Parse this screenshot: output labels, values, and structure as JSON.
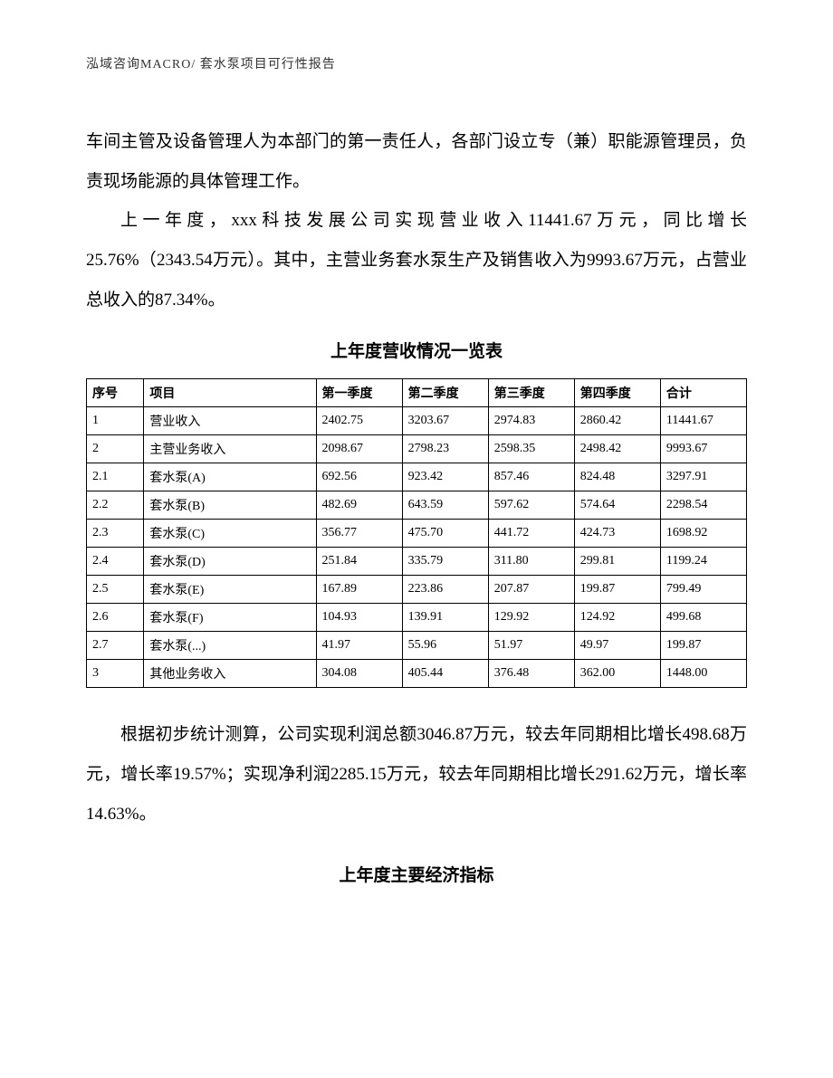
{
  "header": "泓域咨询MACRO/    套水泵项目可行性报告",
  "para1": "车间主管及设备管理人为本部门的第一责任人，各部门设立专（兼）职能源管理员，负责现场能源的具体管理工作。",
  "para2": "上一年度，xxx科技发展公司实现营业收入11441.67万元，同比增长25.76%（2343.54万元）。其中，主营业务套水泵生产及销售收入为9993.67万元，占营业总收入的87.34%。",
  "table1": {
    "title": "上年度营收情况一览表",
    "columns": [
      "序号",
      "项目",
      "第一季度",
      "第二季度",
      "第三季度",
      "第四季度",
      "合计"
    ],
    "rows": [
      [
        "1",
        "营业收入",
        "2402.75",
        "3203.67",
        "2974.83",
        "2860.42",
        "11441.67"
      ],
      [
        "2",
        "主营业务收入",
        "2098.67",
        "2798.23",
        "2598.35",
        "2498.42",
        "9993.67"
      ],
      [
        "2.1",
        "套水泵(A)",
        "692.56",
        "923.42",
        "857.46",
        "824.48",
        "3297.91"
      ],
      [
        "2.2",
        "套水泵(B)",
        "482.69",
        "643.59",
        "597.62",
        "574.64",
        "2298.54"
      ],
      [
        "2.3",
        "套水泵(C)",
        "356.77",
        "475.70",
        "441.72",
        "424.73",
        "1698.92"
      ],
      [
        "2.4",
        "套水泵(D)",
        "251.84",
        "335.79",
        "311.80",
        "299.81",
        "1199.24"
      ],
      [
        "2.5",
        "套水泵(E)",
        "167.89",
        "223.86",
        "207.87",
        "199.87",
        "799.49"
      ],
      [
        "2.6",
        "套水泵(F)",
        "104.93",
        "139.91",
        "129.92",
        "124.92",
        "499.68"
      ],
      [
        "2.7",
        "套水泵(...)",
        "41.97",
        "55.96",
        "51.97",
        "49.97",
        "199.87"
      ],
      [
        "3",
        "其他业务收入",
        "304.08",
        "405.44",
        "376.48",
        "362.00",
        "1448.00"
      ]
    ]
  },
  "para3": "根据初步统计测算，公司实现利润总额3046.87万元，较去年同期相比增长498.68万元，增长率19.57%；实现净利润2285.15万元，较去年同期相比增长291.62万元，增长率14.63%。",
  "title2": "上年度主要经济指标"
}
